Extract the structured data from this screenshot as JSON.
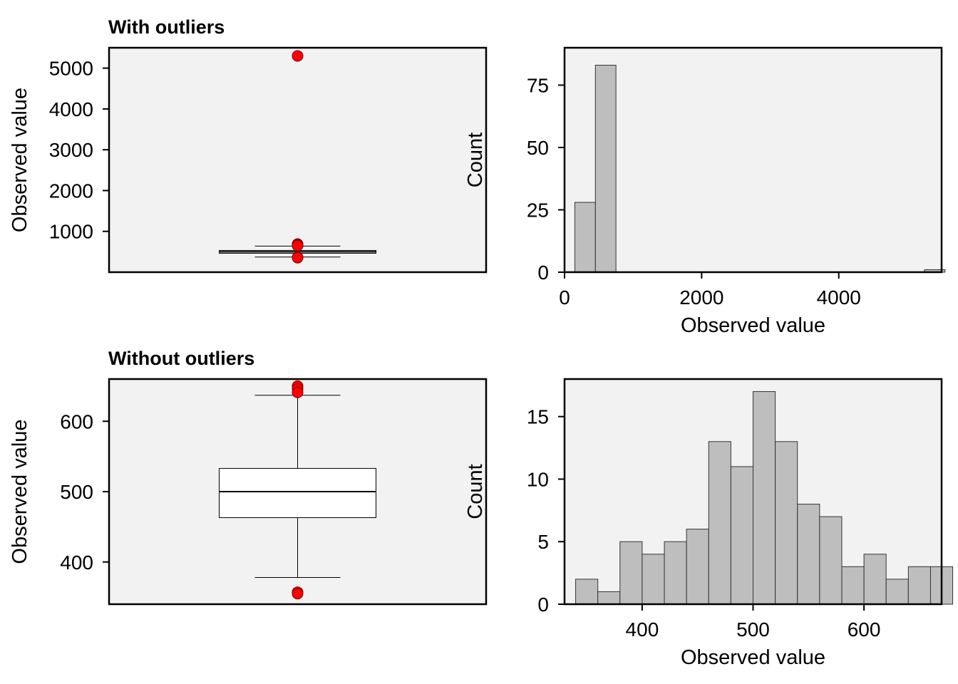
{
  "colors": {
    "panel_bg": "#f2f2f2",
    "box_fill": "#ffffff",
    "bar_fill": "#bebebe",
    "outlier": "#ff0000",
    "line": "#000000"
  },
  "chart_data": [
    {
      "type": "boxplot",
      "title": "With outliers",
      "xlabel": "",
      "ylabel": "Observed value",
      "ylim": [
        0,
        5500
      ],
      "yticks": [
        1000,
        2000,
        3000,
        4000,
        5000
      ],
      "box": {
        "whisker_low": 370,
        "q1": 463,
        "median": 500,
        "q3": 533,
        "whisker_high": 640
      },
      "outliers": [
        5300,
        690,
        670,
        655,
        650,
        360,
        355
      ]
    },
    {
      "type": "histogram",
      "title": "",
      "xlabel": "Observed value",
      "ylabel": "Count",
      "xlim": [
        0,
        5500
      ],
      "ylim": [
        0,
        90
      ],
      "xticks": [
        0,
        2000,
        4000
      ],
      "yticks": [
        0,
        25,
        50,
        75
      ],
      "bins": [
        {
          "x0": 150,
          "x1": 450,
          "count": 28
        },
        {
          "x0": 450,
          "x1": 750,
          "count": 83
        },
        {
          "x0": 5250,
          "x1": 5550,
          "count": 1
        }
      ]
    },
    {
      "type": "boxplot",
      "title": "Without outliers",
      "xlabel": "",
      "ylabel": "Observed value",
      "ylim": [
        340,
        660
      ],
      "yticks": [
        400,
        500,
        600
      ],
      "box": {
        "whisker_low": 378,
        "q1": 463,
        "median": 500,
        "q3": 533,
        "whisker_high": 637
      },
      "outliers": [
        650,
        646,
        641,
        357,
        355
      ]
    },
    {
      "type": "histogram",
      "title": "",
      "xlabel": "Observed value",
      "ylabel": "Count",
      "xlim": [
        330,
        670
      ],
      "ylim": [
        0,
        18
      ],
      "xticks": [
        400,
        500,
        600
      ],
      "yticks": [
        0,
        5,
        10,
        15
      ],
      "bins": [
        {
          "x0": 340,
          "x1": 360,
          "count": 2
        },
        {
          "x0": 360,
          "x1": 380,
          "count": 1
        },
        {
          "x0": 380,
          "x1": 400,
          "count": 5
        },
        {
          "x0": 400,
          "x1": 420,
          "count": 4
        },
        {
          "x0": 420,
          "x1": 440,
          "count": 5
        },
        {
          "x0": 440,
          "x1": 460,
          "count": 6
        },
        {
          "x0": 460,
          "x1": 480,
          "count": 13
        },
        {
          "x0": 480,
          "x1": 500,
          "count": 11
        },
        {
          "x0": 500,
          "x1": 520,
          "count": 17
        },
        {
          "x0": 520,
          "x1": 540,
          "count": 13
        },
        {
          "x0": 540,
          "x1": 560,
          "count": 8
        },
        {
          "x0": 560,
          "x1": 580,
          "count": 7
        },
        {
          "x0": 580,
          "x1": 600,
          "count": 3
        },
        {
          "x0": 600,
          "x1": 620,
          "count": 4
        },
        {
          "x0": 620,
          "x1": 640,
          "count": 2
        },
        {
          "x0": 640,
          "x1": 660,
          "count": 3
        },
        {
          "x0": 660,
          "x1": 680,
          "count": 3
        }
      ]
    }
  ]
}
